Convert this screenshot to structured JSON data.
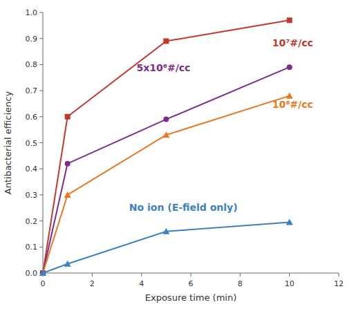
{
  "chart_data": {
    "type": "line",
    "x": [
      0,
      1,
      5,
      10
    ],
    "series": [
      {
        "color": "#c0392b",
        "marker": "square",
        "values": [
          0,
          0.6,
          0.89,
          0.97
        ]
      },
      {
        "color": "#7b2d8b",
        "marker": "circle",
        "values": [
          0,
          0.42,
          0.59,
          0.79
        ]
      },
      {
        "color": "#e87722",
        "marker": "triangle",
        "values": [
          0,
          0.3,
          0.53,
          0.68
        ]
      },
      {
        "color": "#3b82c4",
        "marker": "triangle",
        "values": [
          0,
          0.035,
          0.16,
          0.195
        ]
      }
    ],
    "annotations": [
      {
        "text": "10⁷#/cc",
        "x": 9.3,
        "y": 0.87,
        "color": "#c0392b"
      },
      {
        "text": "5x10⁶#/cc",
        "x": 3.8,
        "y": 0.775,
        "color": "#7b2d8b"
      },
      {
        "text": "10⁶#/cc",
        "x": 9.3,
        "y": 0.635,
        "color": "#e87722"
      },
      {
        "text": "No ion (E-field only)",
        "x": 3.5,
        "y": 0.24,
        "color": "#3b82c4"
      }
    ],
    "x_label": "Exposure time (min)",
    "y_label": "Antibacterial efficiency",
    "xlim": [
      0,
      12
    ],
    "ylim": [
      0,
      1
    ],
    "xticks": [
      0,
      2,
      4,
      6,
      8,
      10,
      12
    ],
    "yticks": [
      {
        "value": 0,
        "label": "0.0"
      },
      {
        "value": 0.1,
        "label": "0.1"
      },
      {
        "value": 0.2,
        "label": "0.2"
      },
      {
        "value": 0.3,
        "label": "0.3"
      },
      {
        "value": 0.4,
        "label": "0.4"
      },
      {
        "value": 0.5,
        "label": "0.5"
      },
      {
        "value": 0.6,
        "label": "0.6"
      },
      {
        "value": 0.7,
        "label": "0.7"
      },
      {
        "value": 0.8,
        "label": "0.8"
      },
      {
        "value": 0.9,
        "label": "0.9"
      },
      {
        "value": 1.0,
        "label": "1.0"
      }
    ],
    "grid": false
  }
}
